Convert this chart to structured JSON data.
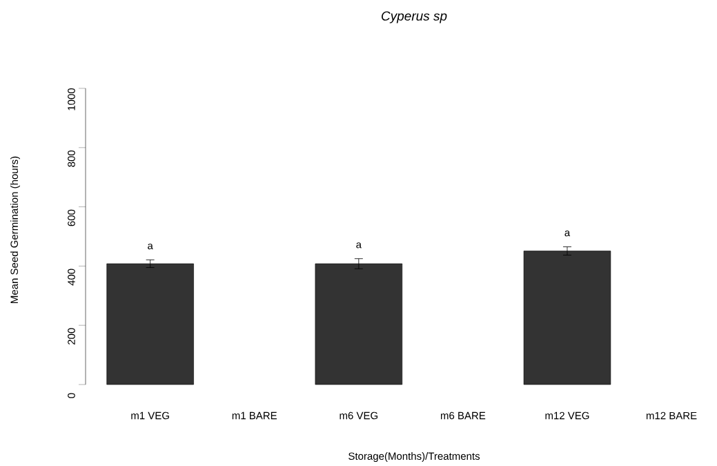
{
  "chart_data": {
    "type": "bar",
    "title": "*Cyperus sp*",
    "xlabel": "Storage(Months)/Treatments",
    "ylabel": "Mean Seed Germination (hours)",
    "categories": [
      "m1 VEG",
      "m1 BARE",
      "m6 VEG",
      "m6 BARE",
      "m12 VEG",
      "m12 BARE"
    ],
    "values": [
      408,
      null,
      408,
      null,
      451,
      null
    ],
    "errors": [
      13,
      null,
      17,
      null,
      14,
      null
    ],
    "color": "#333333",
    "ylim": [
      0,
      1000
    ],
    "yticks": [
      0,
      200,
      400,
      600,
      800,
      1000
    ],
    "grid": false,
    "annotations": [
      "a",
      "a",
      "a"
    ]
  }
}
